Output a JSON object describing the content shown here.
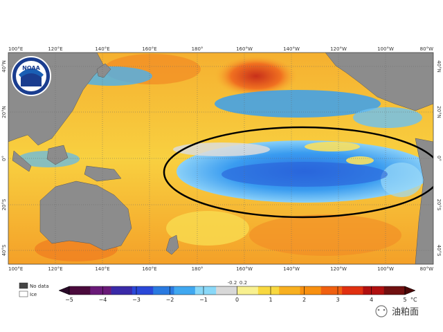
{
  "map": {
    "top_lon_labels": [
      "100°E",
      "120°E",
      "140°E",
      "160°E",
      "180°",
      "160°W",
      "140°W",
      "120°W",
      "100°W",
      "80°W"
    ],
    "bottom_lon_labels": [
      "100°E",
      "120°E",
      "140°E",
      "160°E",
      "180°",
      "160°W",
      "140°W",
      "120°W",
      "100°W",
      "80°W"
    ],
    "left_lat_labels": [
      "40°N",
      "20°N",
      "0°",
      "20°S",
      "40°S"
    ],
    "right_lat_labels": [
      "40°N",
      "20°N",
      "0°",
      "20°S",
      "40°S"
    ],
    "highlight": "ellipse-outline"
  },
  "logo": {
    "text": "NOAA"
  },
  "legend": {
    "no_data_label": "No data",
    "ice_label": "Ice",
    "no_data_color": "#444444",
    "ice_color": "#ffffff"
  },
  "colorbar": {
    "tick_labels": [
      "−5",
      "−4",
      "−3",
      "−2",
      "−1",
      "0",
      "1",
      "2",
      "3",
      "4",
      "5"
    ],
    "small_labels": [
      "-0.2",
      "0.2"
    ],
    "unit": "°C",
    "colors": [
      "#4a0a3c",
      "#6a1a78",
      "#3a2aa8",
      "#2a48d8",
      "#2a7ae0",
      "#40a8f0",
      "#8ad8f8",
      "#d8d8d8",
      "#f8f090",
      "#f8d840",
      "#f8b020",
      "#f89010",
      "#f06010",
      "#e03010",
      "#b01010",
      "#701010"
    ]
  },
  "watermark": {
    "text": "油粕面"
  }
}
